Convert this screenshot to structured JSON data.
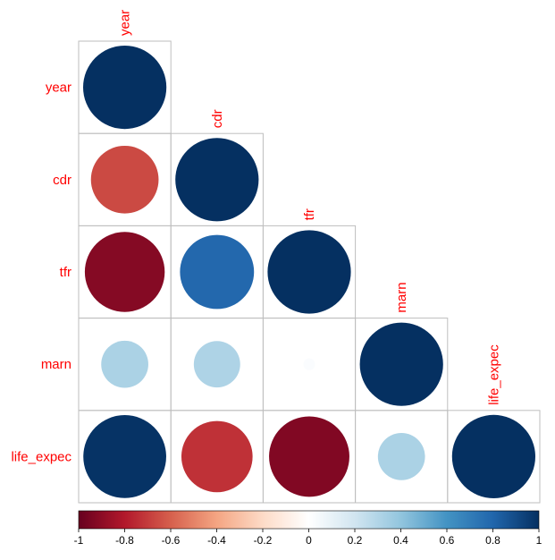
{
  "chart_data": {
    "type": "heatmap",
    "style": "corrplot-circle-lower",
    "variables": [
      "year",
      "cdr",
      "tfr",
      "marn",
      "life_expec"
    ],
    "matrix": [
      [
        1.0,
        -0.66,
        -0.92,
        0.32,
        0.99
      ],
      [
        -0.66,
        1.0,
        0.79,
        0.31,
        -0.73
      ],
      [
        -0.92,
        0.79,
        1.0,
        0.02,
        -0.93
      ],
      [
        0.32,
        0.31,
        0.02,
        1.0,
        0.32
      ],
      [
        0.99,
        -0.73,
        -0.93,
        0.32,
        1.0
      ]
    ],
    "colorbar": {
      "range": [
        -1,
        1
      ],
      "ticks": [
        "-1",
        "-0.8",
        "-0.6",
        "-0.4",
        "-0.2",
        "0",
        "0.2",
        "0.4",
        "0.6",
        "0.8",
        "1"
      ]
    },
    "colors": {
      "neg": "#67001F",
      "mid": "#FFFFFF",
      "pos": "#053061",
      "label": "#FF0000",
      "grid": "#BEBEBE"
    }
  }
}
